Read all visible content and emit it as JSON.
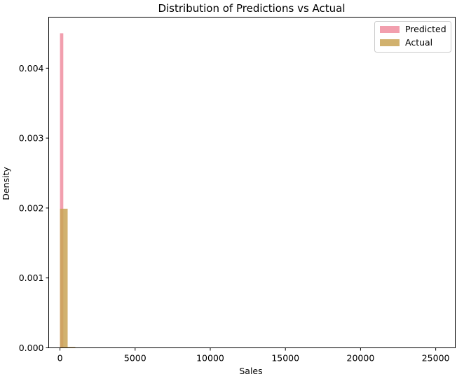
{
  "chart_data": {
    "type": "bar",
    "title": "Distribution of Predictions vs Actual",
    "xlabel": "Sales",
    "ylabel": "Density",
    "xlim": [
      -750,
      26300
    ],
    "ylim": [
      0,
      0.00473
    ],
    "xticks": [
      0,
      5000,
      10000,
      15000,
      20000,
      25000
    ],
    "xtick_labels": [
      "0",
      "5000",
      "10000",
      "15000",
      "20000",
      "25000"
    ],
    "yticks": [
      0,
      0.001,
      0.002,
      0.003,
      0.004
    ],
    "ytick_labels": [
      "0.000",
      "0.001",
      "0.002",
      "0.003",
      "0.004"
    ],
    "legend_position": "top-right",
    "series": [
      {
        "name": "Predicted",
        "color": "#f08ea0",
        "opacity": 0.85,
        "bins": [
          {
            "x0": 0,
            "x1": 220,
            "value": 0.0045
          }
        ]
      },
      {
        "name": "Actual",
        "color": "#c9a355",
        "opacity": 0.85,
        "bins": [
          {
            "x0": 0,
            "x1": 510,
            "value": 0.00199
          },
          {
            "x0": 510,
            "x1": 1020,
            "value": 1.2e-05
          }
        ]
      }
    ]
  }
}
